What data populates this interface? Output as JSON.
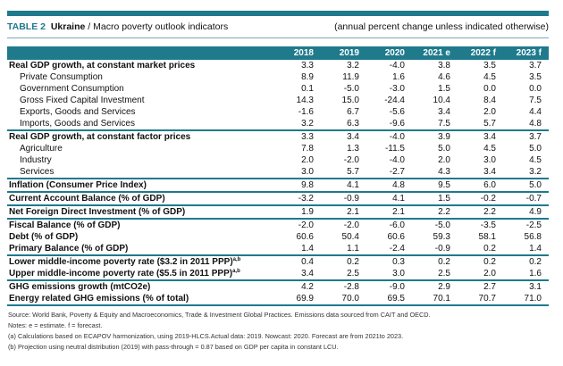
{
  "title": {
    "table_number": "TABLE 2",
    "country": "Ukraine",
    "subtitle": " / Macro poverty outlook indicators",
    "units": "(annual percent change unless indicated otherwise)"
  },
  "columns": [
    "2018",
    "2019",
    "2020",
    "2021 e",
    "2022 f",
    "2023 f"
  ],
  "rows": [
    {
      "label": "Real GDP growth, at constant market prices",
      "bold": true,
      "values": [
        "3.3",
        "3.2",
        "-4.0",
        "3.8",
        "3.5",
        "3.7"
      ]
    },
    {
      "label": "Private Consumption",
      "values": [
        "8.9",
        "11.9",
        "1.6",
        "4.6",
        "4.5",
        "3.5"
      ]
    },
    {
      "label": "Government Consumption",
      "values": [
        "0.1",
        "-5.0",
        "-3.0",
        "1.5",
        "0.0",
        "0.0"
      ]
    },
    {
      "label": "Gross Fixed Capital Investment",
      "values": [
        "14.3",
        "15.0",
        "-24.4",
        "10.4",
        "8.4",
        "7.5"
      ]
    },
    {
      "label": "Exports, Goods and Services",
      "values": [
        "-1.6",
        "6.7",
        "-5.6",
        "3.4",
        "2.0",
        "4.4"
      ]
    },
    {
      "label": "Imports, Goods and Services",
      "sep": true,
      "values": [
        "3.2",
        "6.3",
        "-9.6",
        "7.5",
        "5.7",
        "4.8"
      ]
    },
    {
      "label": "Real GDP growth, at constant factor prices",
      "bold": true,
      "values": [
        "3.3",
        "3.4",
        "-4.0",
        "3.9",
        "3.4",
        "3.7"
      ]
    },
    {
      "label": "Agriculture",
      "values": [
        "7.8",
        "1.3",
        "-11.5",
        "5.0",
        "4.5",
        "5.0"
      ]
    },
    {
      "label": "Industry",
      "values": [
        "2.0",
        "-2.0",
        "-4.0",
        "2.0",
        "3.0",
        "4.5"
      ]
    },
    {
      "label": "Services",
      "sep": true,
      "values": [
        "3.0",
        "5.7",
        "-2.7",
        "4.3",
        "3.4",
        "3.2"
      ]
    },
    {
      "label": "Inflation (Consumer Price Index)",
      "bold": true,
      "sep": true,
      "values": [
        "9.8",
        "4.1",
        "4.8",
        "9.5",
        "6.0",
        "5.0"
      ]
    },
    {
      "label": "Current Account Balance (% of GDP)",
      "bold": true,
      "sep": true,
      "values": [
        "-3.2",
        "-0.9",
        "4.1",
        "1.5",
        "-0.2",
        "-0.7"
      ]
    },
    {
      "label": "Net Foreign Direct Investment (% of GDP)",
      "bold": true,
      "sep": true,
      "values": [
        "1.9",
        "2.1",
        "2.1",
        "2.2",
        "2.2",
        "4.9"
      ]
    },
    {
      "label": "Fiscal Balance (% of GDP)",
      "bold": true,
      "values": [
        "-2.0",
        "-2.0",
        "-6.0",
        "-5.0",
        "-3.5",
        "-2.5"
      ]
    },
    {
      "label": "Debt (% of GDP)",
      "bold": true,
      "values": [
        "60.6",
        "50.4",
        "60.6",
        "59.3",
        "58.1",
        "56.8"
      ]
    },
    {
      "label": "Primary Balance (% of GDP)",
      "bold": true,
      "sep": true,
      "values": [
        "1.4",
        "1.1",
        "-2.4",
        "-0.9",
        "0.2",
        "1.4"
      ]
    },
    {
      "label": "Lower middle-income poverty rate ($3.2 in 2011 PPP)",
      "sup": "a,b",
      "bold": true,
      "values": [
        "0.4",
        "0.2",
        "0.3",
        "0.2",
        "0.2",
        "0.2"
      ]
    },
    {
      "label": "Upper middle-income poverty rate ($5.5 in 2011 PPP)",
      "sup": "a,b",
      "bold": true,
      "sep": true,
      "values": [
        "3.4",
        "2.5",
        "3.0",
        "2.5",
        "2.0",
        "1.6"
      ]
    },
    {
      "label": "GHG emissions growth (mtCO2e)",
      "bold": true,
      "values": [
        "4.2",
        "-2.8",
        "-9.0",
        "2.9",
        "2.7",
        "3.1"
      ]
    },
    {
      "label": "Energy related GHG emissions (% of total)",
      "bold": true,
      "sep": true,
      "values": [
        "69.9",
        "70.0",
        "69.5",
        "70.1",
        "70.7",
        "71.0"
      ]
    }
  ],
  "notes": [
    "Source: World Bank, Poverty & Equity and Macroeconomics, Trade & Investment Global Practices. Emissions data sourced from CAIT and OECD.",
    "Notes: e = estimate. f = forecast.",
    "(a) Calculations based on ECAPOV harmonization, using 2019-HLCS.Actual data: 2019. Nowcast: 2020. Forecast are from 2021to 2023.",
    "(b) Projection using neutral distribution (2019) with pass-through = 0.87 based on GDP per capita in constant LCU."
  ]
}
